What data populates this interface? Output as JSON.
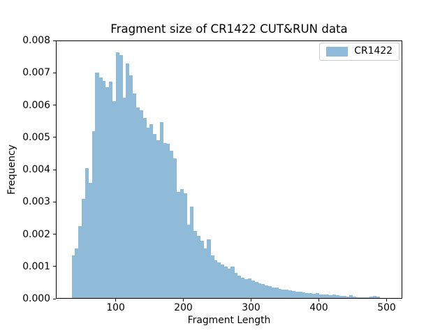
{
  "chart_data": {
    "type": "bar",
    "subtype": "histogram",
    "title": "Fragment size of CR1422 CUT&RUN data",
    "xlabel": "Fragment Length",
    "ylabel": "Frequency",
    "legend": {
      "entries": [
        "CR1422"
      ],
      "position": "upper right"
    },
    "series_color": "#8fbbd9",
    "grid": false,
    "xlim": [
      11.75,
      523.25
    ],
    "ylim": [
      0,
      0.008
    ],
    "xticks": {
      "values": [
        100,
        200,
        300,
        400,
        500
      ],
      "labels": [
        "100",
        "200",
        "300",
        "400",
        "500"
      ]
    },
    "yticks": {
      "values": [
        0,
        0.001,
        0.002,
        0.003,
        0.004,
        0.005,
        0.006,
        0.007,
        0.008
      ],
      "labels": [
        "0.000",
        "0.001",
        "0.002",
        "0.003",
        "0.004",
        "0.005",
        "0.006",
        "0.007",
        "0.008"
      ]
    },
    "bins": {
      "start": 35,
      "width": 5,
      "count": 93,
      "range": [
        35,
        500
      ]
    },
    "frequencies": [
      0.00135,
      0.00155,
      0.00225,
      0.0031,
      0.00405,
      0.0036,
      0.0052,
      0.007,
      0.00685,
      0.00675,
      0.00655,
      0.00673,
      0.00612,
      0.00763,
      0.00754,
      0.00622,
      0.00728,
      0.00693,
      0.00636,
      0.00593,
      0.00584,
      0.00559,
      0.0053,
      0.0054,
      0.0051,
      0.0049,
      0.00548,
      0.00483,
      0.0048,
      0.00458,
      0.00434,
      0.0033,
      0.0034,
      0.00326,
      0.0023,
      0.00286,
      0.0021,
      0.00195,
      0.0018,
      0.00155,
      0.00183,
      0.00135,
      0.0012,
      0.00112,
      0.00105,
      0.001,
      0.00092,
      0.001,
      0.0008,
      0.00072,
      0.00065,
      0.0006,
      0.00062,
      0.00056,
      0.00052,
      0.00048,
      0.00045,
      0.00042,
      0.00038,
      0.00035,
      0.00035,
      0.0003,
      0.00028,
      0.00028,
      0.00026,
      0.00024,
      0.00022,
      0.00022,
      0.0002,
      0.00018,
      0.00018,
      0.00016,
      0.00018,
      0.00014,
      0.00013,
      0.00012,
      0.0001,
      0.00012,
      0.0001,
      8e-05,
      8e-05,
      6e-05,
      0.0001,
      6e-05,
      5e-05,
      5e-05,
      4e-05,
      4e-05,
      6e-05,
      8e-05,
      6e-05,
      3e-05,
      2e-05
    ]
  },
  "colors": {
    "bar_fill": "#8fbbd9",
    "spine": "#000000",
    "legend_border": "#cccccc",
    "background": "#ffffff"
  }
}
